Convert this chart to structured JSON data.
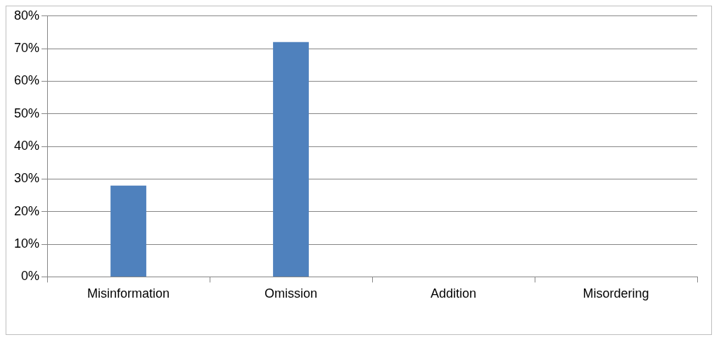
{
  "chart_data": {
    "type": "bar",
    "categories": [
      "Misinformation",
      "Omission",
      "Addition",
      "Misordering"
    ],
    "values": [
      28,
      72,
      0,
      0
    ],
    "color": "#4f81bd",
    "ylim": [
      0,
      80
    ],
    "yticks": [
      {
        "value": 0,
        "label": "0%"
      },
      {
        "value": 10,
        "label": "10%"
      },
      {
        "value": 20,
        "label": "20%"
      },
      {
        "value": 30,
        "label": "30%"
      },
      {
        "value": 40,
        "label": "40%"
      },
      {
        "value": 50,
        "label": "50%"
      },
      {
        "value": 60,
        "label": "60%"
      },
      {
        "value": 70,
        "label": "70%"
      },
      {
        "value": 80,
        "label": "80%"
      }
    ],
    "grid": "y"
  }
}
